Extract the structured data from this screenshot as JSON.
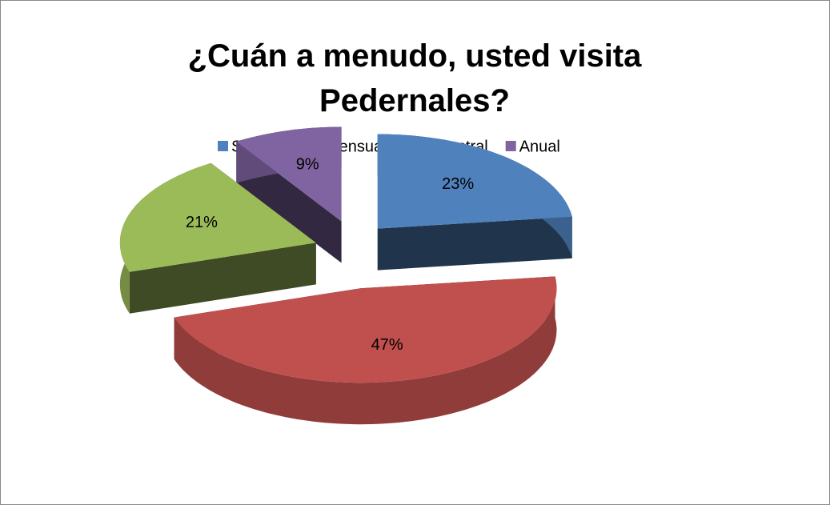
{
  "chart_data": {
    "type": "pie",
    "title": "¿Cuán a menudo, usted visita Pedernales?",
    "categories": [
      "Semanal",
      "Mensual",
      "Trimestral",
      "Anual"
    ],
    "values": [
      23,
      47,
      21,
      9
    ],
    "value_labels": [
      "23%",
      "47%",
      "21%",
      "9%"
    ],
    "colors": [
      "#4f81bd",
      "#c0504d",
      "#9bbb59",
      "#8064a2"
    ],
    "legend": "top",
    "three_d": true,
    "exploded": true
  }
}
